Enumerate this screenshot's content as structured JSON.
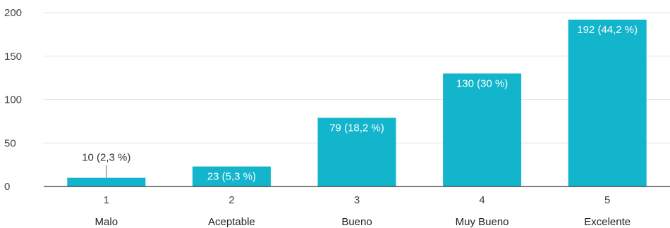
{
  "chart_data": {
    "type": "bar",
    "title": "",
    "xlabel": "",
    "ylabel": "",
    "ylim": [
      0,
      200
    ],
    "y_ticks": [
      0,
      50,
      100,
      150,
      200
    ],
    "grid": true,
    "categories": [
      "1",
      "2",
      "3",
      "4",
      "5"
    ],
    "category_names": [
      "Malo",
      "Aceptable",
      "Bueno",
      "Muy Bueno",
      "Excelente"
    ],
    "values": [
      10,
      23,
      79,
      130,
      192
    ],
    "data_labels": [
      "10 (2,3 %)",
      "23 (5,3 %)",
      "79 (18,2 %)",
      "130 (30 %)",
      "192 (44,2 %)"
    ],
    "colors": {
      "bar": "#12b5cb",
      "label_inside": "#ffffff",
      "label_outside": "#333333"
    }
  }
}
